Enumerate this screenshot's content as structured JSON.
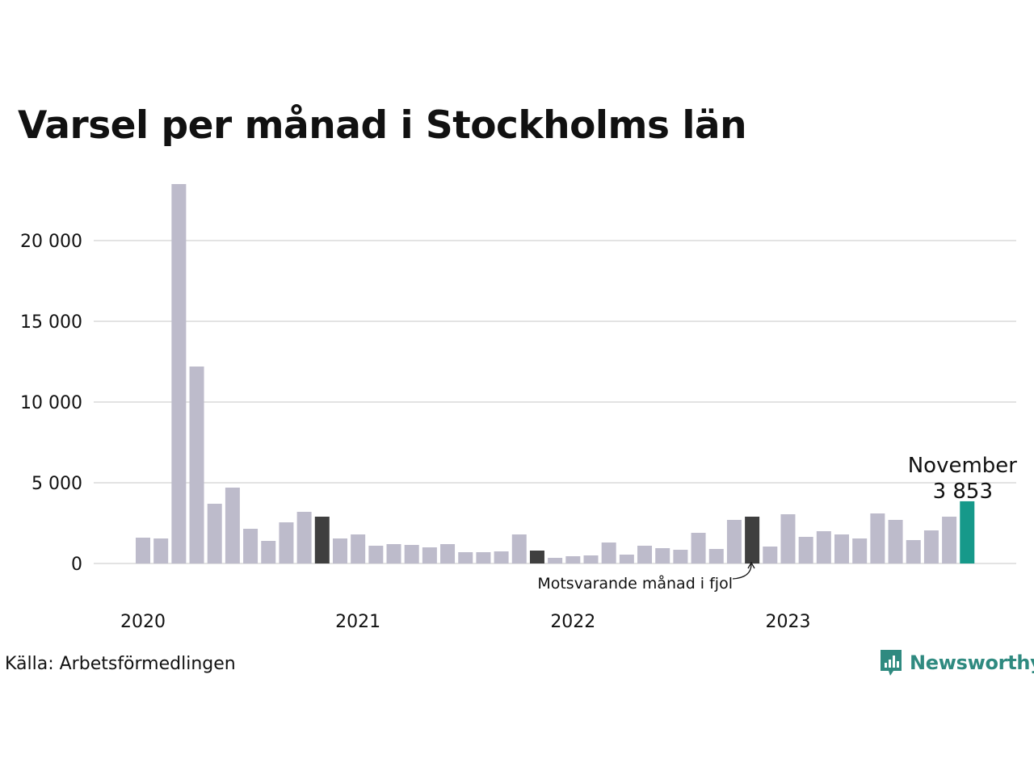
{
  "title": "Varsel per månad i Stockholms län",
  "source": "Källa: Arbetsförmedlingen",
  "brand": "Newsworthy",
  "annotation": "Motsvarande månad i fjol",
  "highlight": {
    "month": "November",
    "value_label": "3 853"
  },
  "colors": {
    "bar": "#bdbbcb",
    "previous_year": "#3f3f3f",
    "current": "#16998a",
    "grid": "#e3e3e3",
    "brand": "#2f8a80"
  },
  "chart_data": {
    "type": "bar",
    "title": "Varsel per månad i Stockholms län",
    "xlabel": "",
    "ylabel": "",
    "ylim": [
      0,
      23500
    ],
    "y_ticks": [
      0,
      5000,
      10000,
      15000,
      20000
    ],
    "y_tick_labels": [
      "0",
      "5 000",
      "10 000",
      "15 000",
      "20 000"
    ],
    "x_tick_labels": [
      "2020",
      "2021",
      "2022",
      "2023"
    ],
    "grid": true,
    "categories": [
      "2020-01",
      "2020-02",
      "2020-03",
      "2020-04",
      "2020-05",
      "2020-06",
      "2020-07",
      "2020-08",
      "2020-09",
      "2020-10",
      "2020-11",
      "2020-12",
      "2021-01",
      "2021-02",
      "2021-03",
      "2021-04",
      "2021-05",
      "2021-06",
      "2021-07",
      "2021-08",
      "2021-09",
      "2021-10",
      "2021-11",
      "2021-12",
      "2022-01",
      "2022-02",
      "2022-03",
      "2022-04",
      "2022-05",
      "2022-06",
      "2022-07",
      "2022-08",
      "2022-09",
      "2022-10",
      "2022-11",
      "2022-12",
      "2023-01",
      "2023-02",
      "2023-03",
      "2023-04",
      "2023-05",
      "2023-06",
      "2023-07",
      "2023-08",
      "2023-09",
      "2023-10",
      "2023-11"
    ],
    "values": [
      1600,
      1550,
      23500,
      12200,
      3700,
      4700,
      2150,
      1400,
      2550,
      3200,
      2900,
      1550,
      1800,
      1100,
      1200,
      1150,
      1000,
      1200,
      700,
      700,
      750,
      1800,
      800,
      350,
      450,
      500,
      1300,
      550,
      1100,
      950,
      850,
      1900,
      900,
      2700,
      2900,
      1050,
      3050,
      1650,
      2000,
      1800,
      1550,
      3100,
      2700,
      1450,
      2050,
      2900,
      3853
    ],
    "highlight_previous_year": "2022-11",
    "highlight_current": "2023-11",
    "previous_years_same_month": [
      "2020-11",
      "2021-11"
    ]
  }
}
